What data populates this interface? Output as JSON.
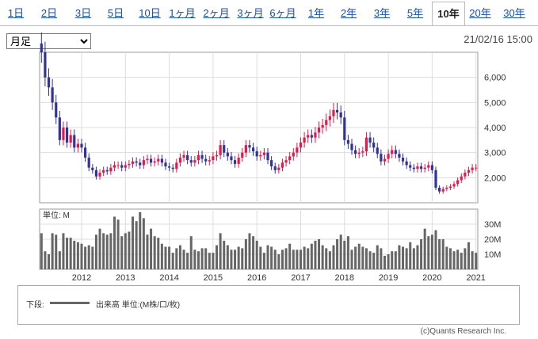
{
  "tabs": [
    {
      "label": "1日"
    },
    {
      "label": "2日"
    },
    {
      "label": "3日"
    },
    {
      "label": "5日"
    },
    {
      "label": "10日"
    },
    {
      "label": "1ヶ月"
    },
    {
      "label": "2ヶ月"
    },
    {
      "label": "3ヶ月"
    },
    {
      "label": "6ヶ月"
    },
    {
      "label": "1年"
    },
    {
      "label": "2年"
    },
    {
      "label": "3年"
    },
    {
      "label": "5年"
    },
    {
      "label": "10年"
    },
    {
      "label": "20年"
    },
    {
      "label": "30年"
    }
  ],
  "active_tab": "10年",
  "period_select": {
    "value": "月足"
  },
  "timestamp": "21/02/16 15:00",
  "colors": {
    "up": "#e3194b",
    "down": "#32329b",
    "volume": "#666666",
    "grid": "#dddddd"
  },
  "chart_data": [
    {
      "type": "candlestick",
      "ylim": [
        1000,
        7000
      ],
      "y_ticks": [
        "2,000",
        "3,000",
        "4,000",
        "5,000",
        "6,000"
      ],
      "grid": true,
      "x_ticks": [
        "2012",
        "2013",
        "2014",
        "2015",
        "2016",
        "2017",
        "2018",
        "2019",
        "2020",
        "2021"
      ],
      "series": [
        {
          "name": "",
          "values_close_monthly": [
            7000,
            6000,
            5600,
            5000,
            4400,
            3500,
            4000,
            3400,
            3700,
            3200,
            3350,
            3200,
            2800,
            2400,
            2300,
            2050,
            2200,
            2300,
            2250,
            2400,
            2500,
            2500,
            2400,
            2500,
            2550,
            2650,
            2600,
            2500,
            2700,
            2750,
            2600,
            2650,
            2750,
            2600,
            2450,
            2400,
            2350,
            2600,
            2800,
            2900,
            2700,
            2600,
            2700,
            2900,
            2750,
            2650,
            2700,
            2850,
            2900,
            3300,
            3000,
            2850,
            2700,
            2550,
            2800,
            3000,
            3300,
            3200,
            3050,
            2850,
            2900,
            3000,
            2700,
            2450,
            2300,
            2400,
            2600,
            2700,
            2850,
            3000,
            3200,
            3400,
            3600,
            3700,
            3600,
            3800,
            4000,
            4100,
            4300,
            4450,
            4700,
            4600,
            4400,
            3500,
            3350,
            3100,
            2950,
            3000,
            3050,
            3600,
            3400,
            3200,
            2950,
            2650,
            2750,
            2950,
            3100,
            2950,
            2800,
            2650,
            2500,
            2400,
            2350,
            2450,
            2350,
            2400,
            2500,
            2300,
            1600,
            1450,
            1550,
            1600,
            1650,
            1750,
            1900,
            2050,
            2200,
            2300,
            2400,
            2400
          ]
        }
      ]
    },
    {
      "type": "bar",
      "ylabel": "単位: M",
      "ylim": [
        0,
        40
      ],
      "y_ticks": [
        "10M",
        "20M",
        "30M"
      ],
      "series": [
        {
          "name": "出来高",
          "values": [
            24,
            12,
            10,
            24,
            23,
            12,
            24,
            21,
            21,
            19,
            18,
            17,
            15,
            16,
            15,
            23,
            27,
            24,
            23,
            24,
            35,
            33,
            22,
            24,
            25,
            35,
            32,
            38,
            34,
            23,
            27,
            22,
            21,
            17,
            15,
            15,
            11,
            14,
            16,
            13,
            11,
            22,
            13,
            12,
            14,
            14,
            11,
            11,
            16,
            24,
            19,
            16,
            13,
            13,
            15,
            14,
            20,
            24,
            22,
            19,
            15,
            11,
            16,
            15,
            13,
            10,
            13,
            14,
            17,
            13,
            13,
            13,
            15,
            14,
            17,
            19,
            20,
            16,
            14,
            12,
            16,
            20,
            23,
            19,
            22,
            13,
            15,
            17,
            15,
            14,
            12,
            11,
            16,
            14,
            9,
            10,
            12,
            12,
            16,
            15,
            14,
            18,
            14,
            16,
            20,
            27,
            22,
            23,
            26,
            20,
            20,
            15,
            14,
            12,
            13,
            11,
            14,
            18,
            12,
            11
          ]
        }
      ]
    }
  ],
  "legend": {
    "label": "下段:",
    "series": "出来高 単位:(M株/口/枚)"
  },
  "copyright": "(c)Quants Research Inc."
}
